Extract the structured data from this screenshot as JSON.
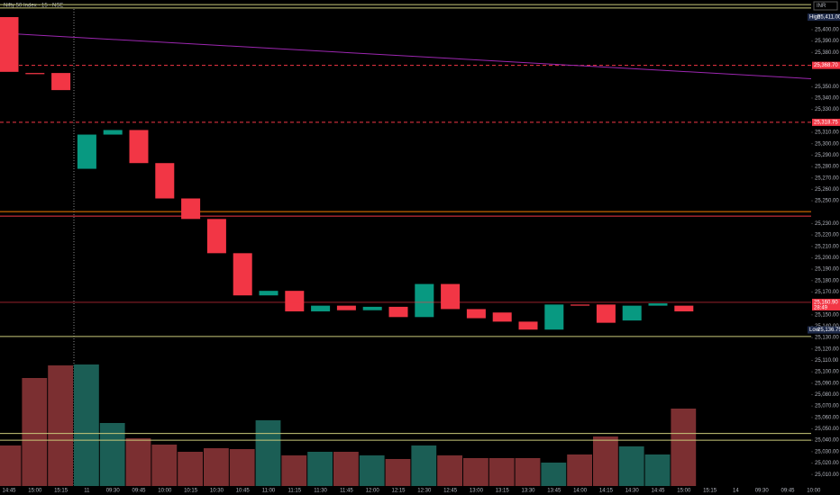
{
  "chart_data": {
    "type": "candlestick",
    "title": "Nifty 50 Index · 15 · NSE",
    "currency": "INR",
    "categories": [
      "14:45",
      "15:00",
      "15:15",
      "11",
      "09:30",
      "09:45",
      "10:00",
      "10:15",
      "10:30",
      "10:45",
      "11:00",
      "11:15",
      "11:30",
      "11:45",
      "12:00",
      "12:15",
      "12:30",
      "12:45",
      "13:00",
      "13:15",
      "13:30",
      "13:45",
      "14:00",
      "14:15",
      "14:30",
      "14:45",
      "15:00",
      "15:15",
      "14",
      "09:30",
      "09:45",
      "10:00"
    ],
    "open": [
      25411,
      25362,
      25362,
      25278,
      25308,
      25312,
      25283,
      25252,
      25234,
      25204,
      25167,
      25171,
      25153,
      25158,
      25154,
      25157,
      25148,
      25177,
      25155,
      25152,
      25144,
      25137,
      25159,
      25159,
      25145,
      25158,
      25158,
      null,
      null,
      null,
      null,
      null
    ],
    "high": {
      "tag": "High",
      "value": 25411,
      "label": "25,411.00"
    },
    "low": {
      "tag": "Low",
      "value": 25136.75,
      "label": "25,136.75"
    },
    "close": [
      25363,
      25361,
      25347,
      25308,
      25312,
      25283,
      25252,
      25234,
      25204,
      25167,
      25171,
      25153,
      25158,
      25154,
      25157,
      25148,
      25177,
      25155,
      25147,
      25144,
      25137,
      25159,
      25158,
      25143,
      25158,
      25160,
      25153,
      null,
      null,
      null,
      null,
      null
    ],
    "volume": [
      45,
      120,
      134,
      135,
      70,
      53,
      46,
      38,
      42,
      41,
      73,
      34,
      38,
      38,
      34,
      30,
      45,
      34,
      31,
      31,
      31,
      26,
      35,
      55,
      44,
      35,
      86,
      null,
      null,
      null,
      null,
      null
    ],
    "up_color": "#089981",
    "down_color": "#f23645",
    "vol_up_color": "#1b5e55",
    "vol_down_color": "#7b2f31",
    "ylim": [
      24992,
      25426
    ],
    "yticks": [
      {
        "value": 25010,
        "label": "25,010.00"
      },
      {
        "value": 25020,
        "label": "25,020.00"
      },
      {
        "value": 25030,
        "label": "25,030.00"
      },
      {
        "value": 25040,
        "label": "25,040.00"
      },
      {
        "value": 25050,
        "label": "25,050.00"
      },
      {
        "value": 25060,
        "label": "25,060.00"
      },
      {
        "value": 25070,
        "label": "25,070.00"
      },
      {
        "value": 25080,
        "label": "25,080.00"
      },
      {
        "value": 25090,
        "label": "25,090.00"
      },
      {
        "value": 25100,
        "label": "25,100.00"
      },
      {
        "value": 25110,
        "label": "25,110.00"
      },
      {
        "value": 25120,
        "label": "25,120.00"
      },
      {
        "value": 25130,
        "label": "25,130.00"
      },
      {
        "value": 25140,
        "label": "25,140.00"
      },
      {
        "value": 25150,
        "label": "25,150.00"
      },
      {
        "value": 25170,
        "label": "25,170.00"
      },
      {
        "value": 25180,
        "label": "25,180.00"
      },
      {
        "value": 25190,
        "label": "25,190.00"
      },
      {
        "value": 25200,
        "label": "25,200.00"
      },
      {
        "value": 25210,
        "label": "25,210.00"
      },
      {
        "value": 25220,
        "label": "25,220.00"
      },
      {
        "value": 25230,
        "label": "25,230.00"
      },
      {
        "value": 25250,
        "label": "25,250.00"
      },
      {
        "value": 25260,
        "label": "25,260.00"
      },
      {
        "value": 25270,
        "label": "25,270.00"
      },
      {
        "value": 25280,
        "label": "25,280.00"
      },
      {
        "value": 25290,
        "label": "25,290.00"
      },
      {
        "value": 25300,
        "label": "25,300.00"
      },
      {
        "value": 25310,
        "label": "25,310.00"
      },
      {
        "value": 25330,
        "label": "25,330.00"
      },
      {
        "value": 25340,
        "label": "25,340.00"
      },
      {
        "value": 25350,
        "label": "25,350.00"
      },
      {
        "value": 25380,
        "label": "25,380.00"
      },
      {
        "value": 25390,
        "label": "25,390.00"
      },
      {
        "value": 25400,
        "label": "25,400.00"
      }
    ],
    "trendline": {
      "start": 25397,
      "end": 25357,
      "color": "#9c27b0"
    },
    "levels": [
      {
        "value": 25368.7,
        "label": "25,368.70",
        "color": "#f23645",
        "dash": true
      },
      {
        "value": 25318.75,
        "label": "25,318.75",
        "color": "#f23645",
        "dash": true
      },
      {
        "value": 25240.5,
        "color": "#f57c00",
        "dash": false
      },
      {
        "value": 25236.5,
        "color": "#f23645",
        "dash": false
      },
      {
        "value": 25422,
        "color": "#c9c97a",
        "dash": false
      },
      {
        "value": 25419,
        "color": "#c9c97a",
        "dash": false
      },
      {
        "value": 25131,
        "color": "#c9c97a",
        "dash": false
      },
      {
        "value": 25046,
        "color": "#c9c97a",
        "dash": false
      },
      {
        "value": 25040,
        "color": "#c9c97a",
        "dash": false
      }
    ],
    "last": {
      "value": 25160.9,
      "label": "25,160.90",
      "countdown": "28:49",
      "color": "#f23645"
    }
  }
}
